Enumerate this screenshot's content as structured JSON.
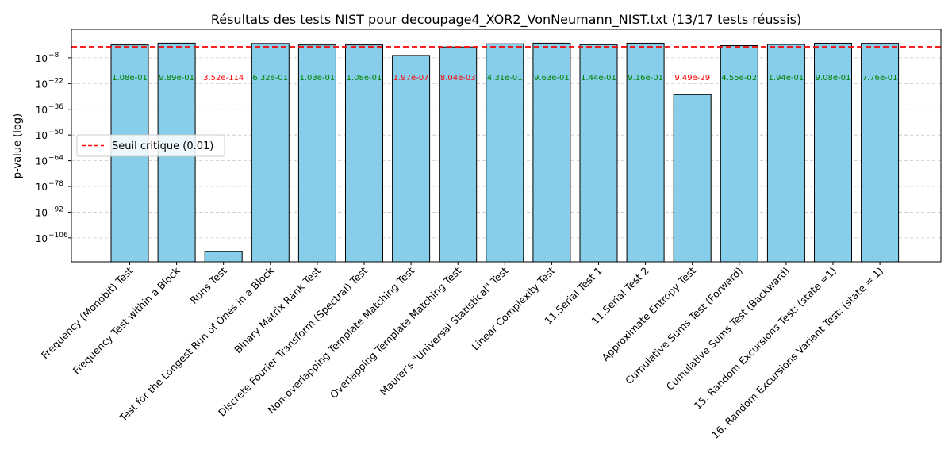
{
  "chart_data": {
    "type": "bar",
    "title": "Résultats des tests NIST pour decoupage4_XOR2_VonNeumann_NIST.txt (13/17 tests réussis)",
    "xlabel": "",
    "ylabel": "p-value (log)",
    "yscale": "log",
    "ylim_log10": [
      -119,
      7.5
    ],
    "yticks_log10": [
      -8,
      -22,
      -36,
      -50,
      -64,
      -78,
      -92,
      -106
    ],
    "ytick_labels": [
      "10",
      "10",
      "10",
      "10",
      "10",
      "10",
      "10",
      "10"
    ],
    "ytick_exponents": [
      "−8",
      "−22",
      "−36",
      "−50",
      "−64",
      "−78",
      "−92",
      "−106"
    ],
    "grid": "horizontal dashed",
    "categories": [
      "Frequency (Monobit) Test",
      "Frequency Test within a Block",
      "Runs Test",
      "Test for the Longest Run of Ones in a Block",
      "Binary Matrix Rank Test",
      "Discrete Fourier Transform (Spectral) Test",
      "Non-overlapping Template Matching Test",
      "Overlapping Template Matching Test",
      "Maurer's \"Universal Statistical\" Test",
      "Linear Complexity Test",
      "11.Serial Test 1",
      "11.Serial Test 2",
      "Approximate Entropy Test",
      "Cumulative Sums Test (Forward)",
      "Cumulative Sums Test (Backward)",
      "15. Random Excursions Test: (state =1)",
      "16. Random Excursions Variant Test: (state = 1)"
    ],
    "values": [
      0.108,
      0.989,
      3.52e-114,
      0.632,
      0.103,
      0.108,
      1.97e-07,
      0.00804,
      0.431,
      0.963,
      0.144,
      0.916,
      9.49e-29,
      0.0455,
      0.194,
      0.908,
      0.776
    ],
    "value_labels": [
      "1.08e-01",
      "9.89e-01",
      "3.52e-114",
      "6.32e-01",
      "1.03e-01",
      "1.08e-01",
      "1.97e-07",
      "8.04e-03",
      "4.31e-01",
      "9.63e-01",
      "1.44e-01",
      "9.16e-01",
      "9.49e-29",
      "4.55e-02",
      "1.94e-01",
      "9.08e-01",
      "7.76e-01"
    ],
    "bar_color": "#87CEEB",
    "pass_color": "#008000",
    "fail_color": "#ff0000",
    "threshold": {
      "value": 0.01,
      "label": "Seuil critique (0.01)",
      "color": "#ff0000"
    },
    "legend_placement": "center-left"
  }
}
